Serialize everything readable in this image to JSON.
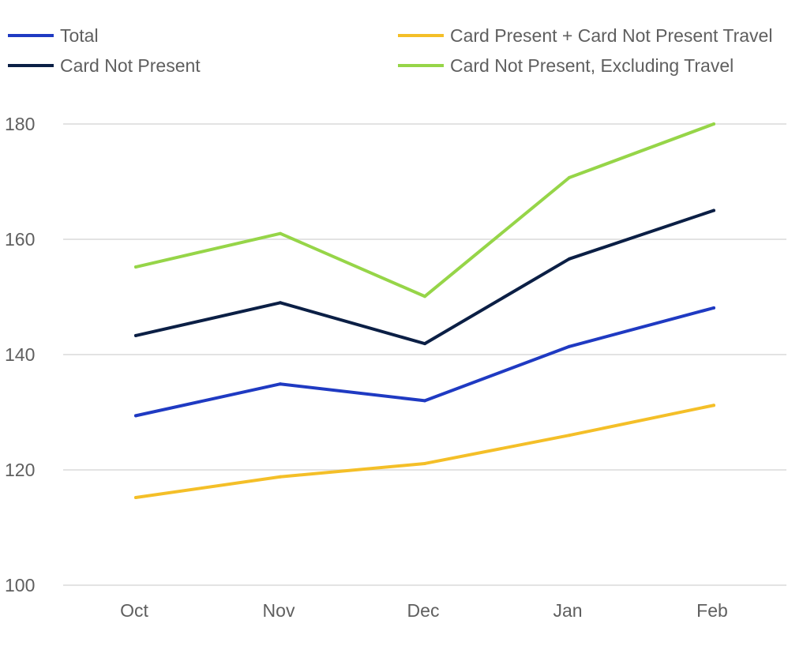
{
  "chart_data": {
    "type": "line",
    "title": "",
    "xlabel": "",
    "ylabel": "",
    "categories": [
      "Oct",
      "Nov",
      "Dec",
      "Jan",
      "Feb"
    ],
    "ylim": [
      100,
      180
    ],
    "yticks": [
      100,
      120,
      140,
      160,
      180
    ],
    "grid": true,
    "legend_position": "top",
    "series": [
      {
        "name": "Total",
        "color": "#1f3ac2",
        "values": [
          129.4,
          134.9,
          132.0,
          141.4,
          148.1
        ]
      },
      {
        "name": "Card Not Present",
        "color": "#0b1f45",
        "values": [
          143.3,
          149.0,
          141.9,
          156.6,
          165.0
        ]
      },
      {
        "name": "Card Present + Card Not Present Travel",
        "color": "#f4bf28",
        "values": [
          115.2,
          118.8,
          121.1,
          126.0,
          131.2
        ]
      },
      {
        "name": "Card Not Present, Excluding Travel",
        "color": "#96d548",
        "values": [
          155.2,
          161.0,
          150.1,
          170.7,
          180.0
        ]
      }
    ]
  }
}
